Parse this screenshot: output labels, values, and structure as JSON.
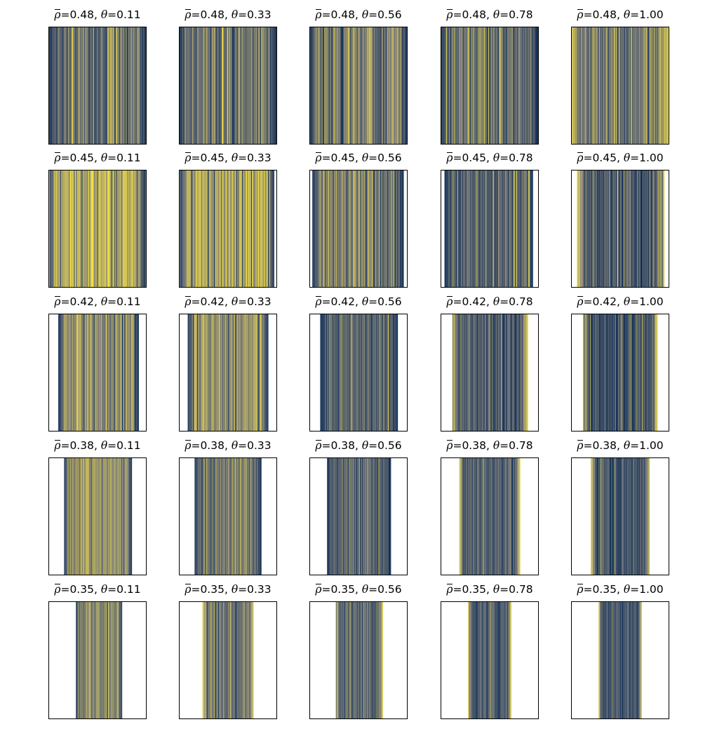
{
  "chart_data": {
    "type": "heatmap",
    "layout": {
      "rows": 5,
      "cols": 5
    },
    "colormap": [
      "#00224e",
      "#7c7b78",
      "#fee838"
    ],
    "rho_labels": [
      "0.48",
      "0.45",
      "0.42",
      "0.38",
      "0.35"
    ],
    "theta_labels": [
      "0.11",
      "0.33",
      "0.56",
      "0.78",
      "1.00"
    ],
    "xticks": "none",
    "yticks": "none",
    "panels": [
      {
        "rho": "0.48",
        "theta": "0.11",
        "band": [
          0.0,
          1.0
        ],
        "mean": 0.42,
        "edge": "dark"
      },
      {
        "rho": "0.48",
        "theta": "0.33",
        "band": [
          0.0,
          1.0
        ],
        "mean": 0.45,
        "edge": "dark"
      },
      {
        "rho": "0.48",
        "theta": "0.56",
        "band": [
          0.0,
          1.0
        ],
        "mean": 0.5,
        "edge": "dark"
      },
      {
        "rho": "0.48",
        "theta": "0.78",
        "band": [
          0.0,
          1.0
        ],
        "mean": 0.42,
        "edge": "dark"
      },
      {
        "rho": "0.48",
        "theta": "1.00",
        "band": [
          0.0,
          1.0
        ],
        "mean": 0.5,
        "edge": "bright"
      },
      {
        "rho": "0.45",
        "theta": "0.11",
        "band": [
          0.0,
          0.99
        ],
        "mean": 0.72,
        "edge": "dark"
      },
      {
        "rho": "0.45",
        "theta": "0.33",
        "band": [
          0.01,
          0.97
        ],
        "mean": 0.68,
        "edge": "dark"
      },
      {
        "rho": "0.45",
        "theta": "0.56",
        "band": [
          0.03,
          0.96
        ],
        "mean": 0.45,
        "edge": "dark"
      },
      {
        "rho": "0.45",
        "theta": "0.78",
        "band": [
          0.04,
          0.94
        ],
        "mean": 0.35,
        "edge": "dark"
      },
      {
        "rho": "0.45",
        "theta": "1.00",
        "band": [
          0.06,
          0.95
        ],
        "mean": 0.3,
        "edge": "bright"
      },
      {
        "rho": "0.42",
        "theta": "0.11",
        "band": [
          0.1,
          0.92
        ],
        "mean": 0.58,
        "edge": "dark"
      },
      {
        "rho": "0.42",
        "theta": "0.33",
        "band": [
          0.09,
          0.91
        ],
        "mean": 0.6,
        "edge": "dark"
      },
      {
        "rho": "0.42",
        "theta": "0.56",
        "band": [
          0.11,
          0.9
        ],
        "mean": 0.35,
        "edge": "dark"
      },
      {
        "rho": "0.42",
        "theta": "0.78",
        "band": [
          0.12,
          0.89
        ],
        "mean": 0.3,
        "edge": "bright"
      },
      {
        "rho": "0.42",
        "theta": "1.00",
        "band": [
          0.12,
          0.88
        ],
        "mean": 0.25,
        "edge": "bright"
      },
      {
        "rho": "0.38",
        "theta": "0.11",
        "band": [
          0.16,
          0.85
        ],
        "mean": 0.6,
        "edge": "dark"
      },
      {
        "rho": "0.38",
        "theta": "0.33",
        "band": [
          0.16,
          0.84
        ],
        "mean": 0.45,
        "edge": "dark"
      },
      {
        "rho": "0.38",
        "theta": "0.56",
        "band": [
          0.18,
          0.83
        ],
        "mean": 0.35,
        "edge": "dark"
      },
      {
        "rho": "0.38",
        "theta": "0.78",
        "band": [
          0.19,
          0.81
        ],
        "mean": 0.3,
        "edge": "bright"
      },
      {
        "rho": "0.38",
        "theta": "1.00",
        "band": [
          0.2,
          0.8
        ],
        "mean": 0.25,
        "edge": "bright"
      },
      {
        "rho": "0.35",
        "theta": "0.11",
        "band": [
          0.28,
          0.75
        ],
        "mean": 0.55,
        "edge": "dark"
      },
      {
        "rho": "0.35",
        "theta": "0.33",
        "band": [
          0.24,
          0.76
        ],
        "mean": 0.4,
        "edge": "bright"
      },
      {
        "rho": "0.35",
        "theta": "0.56",
        "band": [
          0.27,
          0.75
        ],
        "mean": 0.35,
        "edge": "bright"
      },
      {
        "rho": "0.35",
        "theta": "0.78",
        "band": [
          0.28,
          0.72
        ],
        "mean": 0.28,
        "edge": "bright"
      },
      {
        "rho": "0.35",
        "theta": "1.00",
        "band": [
          0.28,
          0.72
        ],
        "mean": 0.22,
        "edge": "bright"
      }
    ]
  }
}
